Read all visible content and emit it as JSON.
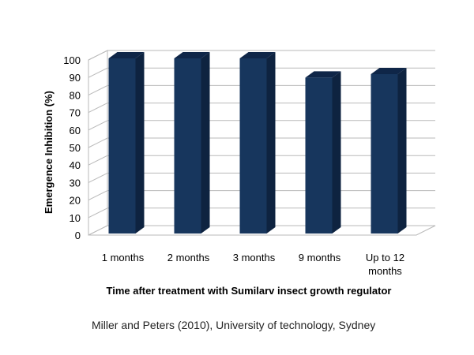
{
  "chart_data": {
    "type": "bar",
    "categories": [
      "1 months",
      "2 months",
      "3 months",
      "9 months",
      "Up to 12 months"
    ],
    "category_lines": [
      [
        "1 months"
      ],
      [
        "2 months"
      ],
      [
        "3 months"
      ],
      [
        "9 months"
      ],
      [
        "Up to 12",
        "months"
      ]
    ],
    "values": [
      100,
      100,
      100,
      89,
      91
    ],
    "xlabel": "Time after treatment with Sumilarv insect growth regulator",
    "ylabel": "Emergence Inhibition (%)",
    "ylim": [
      0,
      100
    ],
    "yticks": [
      0,
      10,
      20,
      30,
      40,
      50,
      60,
      70,
      80,
      90,
      100
    ],
    "grid": true,
    "bar_color": "#17365d",
    "bar_side_color": "#0e2340",
    "bar_top_color": "#0f2648"
  },
  "caption": "Miller and Peters (2010), University of technology, Sydney"
}
